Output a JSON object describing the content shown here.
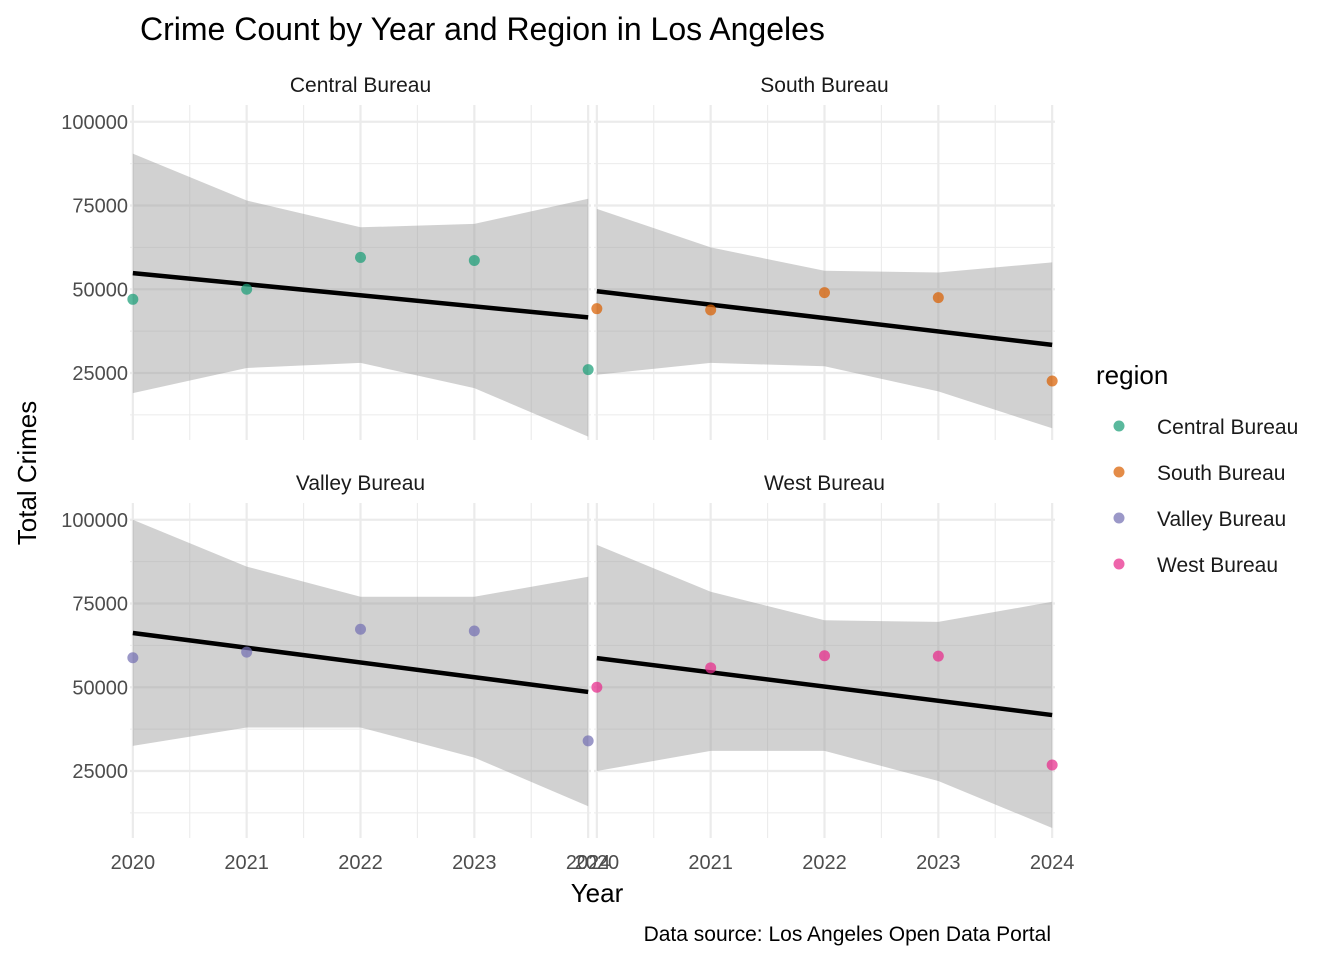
{
  "chart_data": {
    "type": "scatter",
    "title": "Crime Count by Year and Region in Los Angeles",
    "xlabel": "Year",
    "ylabel": "Total Crimes",
    "caption": "Data source: Los Angeles Open Data Portal",
    "x_ticks": [
      "2020",
      "2021",
      "2022",
      "2023",
      "2024"
    ],
    "y_ticks": [
      "25000",
      "50000",
      "75000",
      "100000"
    ],
    "xlim": [
      2019.975,
      2024.025
    ],
    "ylim": [
      5000,
      105000
    ],
    "legend": {
      "title": "region",
      "placement": "right"
    },
    "panels": [
      {
        "name": "Central Bureau",
        "color": "#1B9E77",
        "x": [
          2020,
          2021,
          2022,
          2023,
          2024
        ],
        "y": [
          47000,
          50000,
          59500,
          58600,
          26000
        ],
        "fit": [
          54800,
          51500,
          48200,
          44900,
          41600
        ],
        "ci_low": [
          19000,
          26500,
          28000,
          20500,
          6000
        ],
        "ci_high": [
          90500,
          76500,
          68500,
          69500,
          77000
        ]
      },
      {
        "name": "South Bureau",
        "color": "#D95F02",
        "x": [
          2020,
          2021,
          2022,
          2023,
          2024
        ],
        "y": [
          44200,
          43800,
          49000,
          47500,
          22600
        ],
        "fit": [
          49400,
          45400,
          41400,
          37400,
          33400
        ],
        "ci_low": [
          24500,
          28000,
          27000,
          19500,
          8500
        ],
        "ci_high": [
          74000,
          62500,
          55500,
          55000,
          58000
        ]
      },
      {
        "name": "Valley Bureau",
        "color": "#7570B3",
        "x": [
          2020,
          2021,
          2022,
          2023,
          2024
        ],
        "y": [
          58800,
          60500,
          67300,
          66800,
          34000
        ],
        "fit": [
          66200,
          61800,
          57400,
          53000,
          48600
        ],
        "ci_low": [
          32500,
          38000,
          38000,
          29000,
          14500
        ],
        "ci_high": [
          100000,
          86000,
          77000,
          77000,
          83000
        ]
      },
      {
        "name": "West Bureau",
        "color": "#E7298A",
        "x": [
          2020,
          2021,
          2022,
          2023,
          2024
        ],
        "y": [
          50000,
          55800,
          59400,
          59300,
          26800
        ],
        "fit": [
          58700,
          54400,
          50200,
          46000,
          41700
        ],
        "ci_low": [
          25000,
          31000,
          31000,
          22000,
          8000
        ],
        "ci_high": [
          92500,
          78500,
          70000,
          69500,
          75500
        ]
      }
    ]
  }
}
